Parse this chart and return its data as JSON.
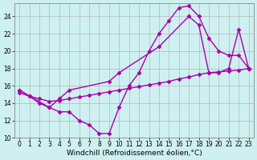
{
  "bg_color": "#cff0f0",
  "grid_color": "#aaaaaa",
  "line_color": "#aa00aa",
  "marker": "D",
  "markersize": 2.5,
  "linewidth": 1.0,
  "xlabel": "Windchill (Refroidissement éolien,°C)",
  "xlabel_fontsize": 6.5,
  "tick_fontsize": 5.5,
  "xlim": [
    -0.5,
    23.5
  ],
  "ylim": [
    10,
    25.5
  ],
  "yticks": [
    10,
    12,
    14,
    16,
    18,
    20,
    22,
    24
  ],
  "xticks": [
    0,
    1,
    2,
    3,
    4,
    5,
    6,
    7,
    8,
    9,
    10,
    11,
    12,
    13,
    14,
    15,
    16,
    17,
    18,
    19,
    20,
    21,
    22,
    23
  ],
  "line1_x": [
    0,
    1,
    2,
    3,
    4,
    5,
    6,
    7,
    8,
    9,
    10,
    11,
    12,
    13,
    14,
    15,
    16,
    17,
    18,
    19,
    20,
    21,
    22,
    23
  ],
  "line1_y": [
    15.5,
    14.8,
    14.0,
    13.5,
    13.0,
    13.0,
    12.0,
    11.5,
    10.5,
    10.5,
    13.5,
    16.0,
    17.5,
    20.0,
    22.0,
    23.5,
    25.0,
    25.2,
    24.0,
    21.5,
    20.0,
    19.5,
    19.5,
    18.0
  ],
  "line2_x": [
    0,
    3,
    4,
    5,
    9,
    10,
    14,
    17,
    18,
    19,
    20,
    21,
    22,
    23
  ],
  "line2_y": [
    15.5,
    13.5,
    14.5,
    15.5,
    16.5,
    17.5,
    20.5,
    24.0,
    23.0,
    17.5,
    17.5,
    18.0,
    22.5,
    18.0
  ],
  "line3_x": [
    0,
    1,
    2,
    3,
    4,
    5,
    6,
    7,
    8,
    9,
    10,
    11,
    12,
    13,
    14,
    15,
    16,
    17,
    18,
    19,
    20,
    21,
    22,
    23
  ],
  "line3_y": [
    15.2,
    14.8,
    14.5,
    14.2,
    14.3,
    14.5,
    14.7,
    14.9,
    15.1,
    15.3,
    15.5,
    15.7,
    15.9,
    16.1,
    16.3,
    16.5,
    16.8,
    17.0,
    17.3,
    17.5,
    17.6,
    17.7,
    17.8,
    18.0
  ]
}
